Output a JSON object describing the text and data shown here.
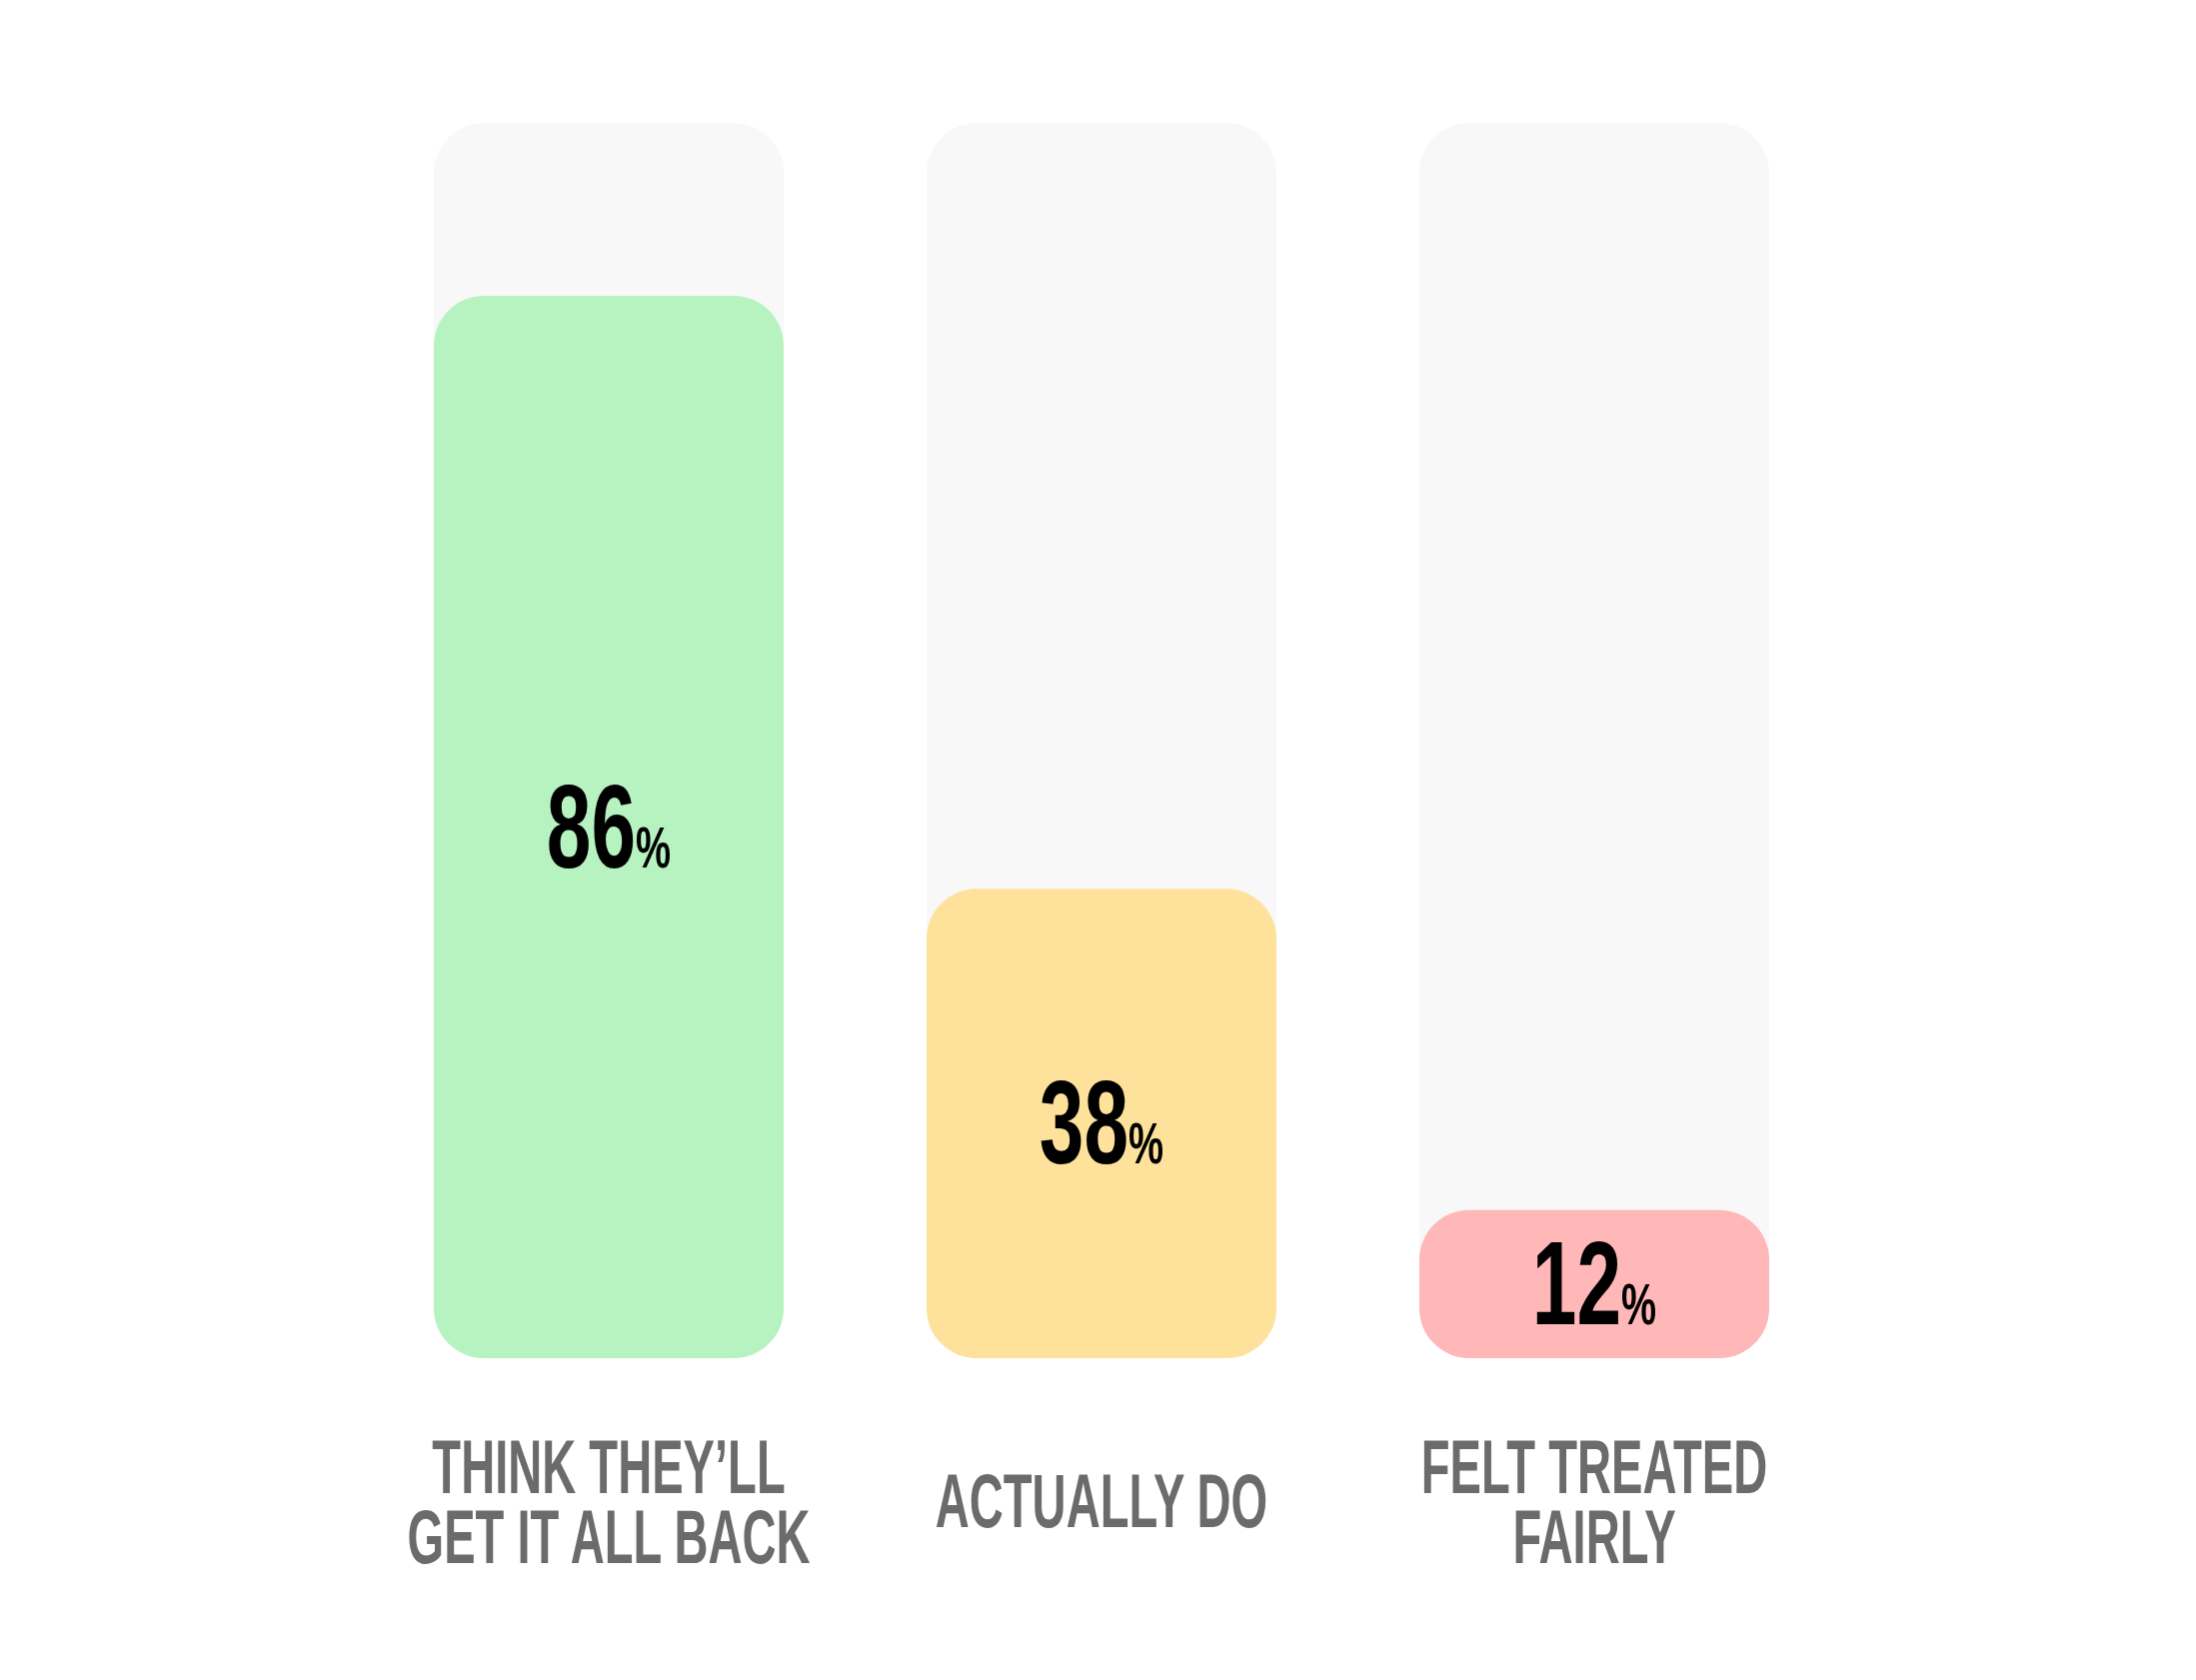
{
  "chart_data": {
    "type": "bar",
    "categories": [
      "THINK THEY’LL GET IT ALL BACK",
      "ACTUALLY DO",
      "FELT TREATED FAIRLY"
    ],
    "values": [
      86,
      38,
      12
    ],
    "colors": [
      "#b7f2c1",
      "#fee29c",
      "#ffb7b8"
    ],
    "value_labels": [
      "86%",
      "38%",
      "12%"
    ],
    "ylim": [
      0,
      100
    ],
    "tick_labels": "x"
  }
}
